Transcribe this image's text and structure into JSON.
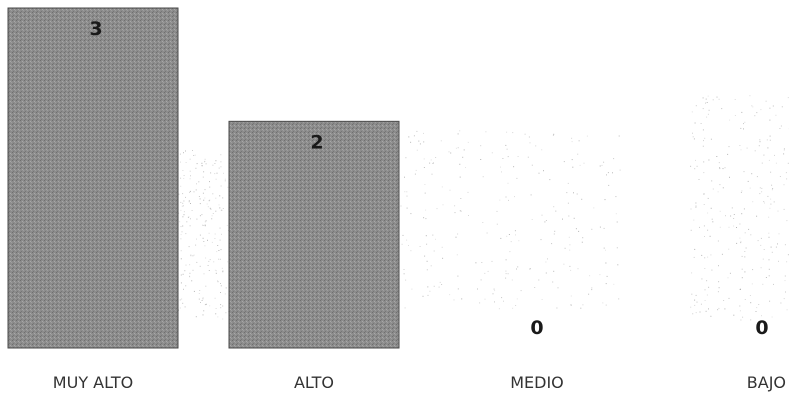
{
  "chart_data": {
    "type": "bar",
    "categories": [
      "MUY ALTO",
      "ALTO",
      "MEDIO",
      "BAJO"
    ],
    "values": [
      3,
      2,
      0,
      0
    ],
    "title": "",
    "xlabel": "",
    "ylabel": "",
    "ylim": [
      0,
      3
    ],
    "grid": false,
    "legend": "none",
    "data_labels": true,
    "bar_color": "#8c8c8c"
  }
}
